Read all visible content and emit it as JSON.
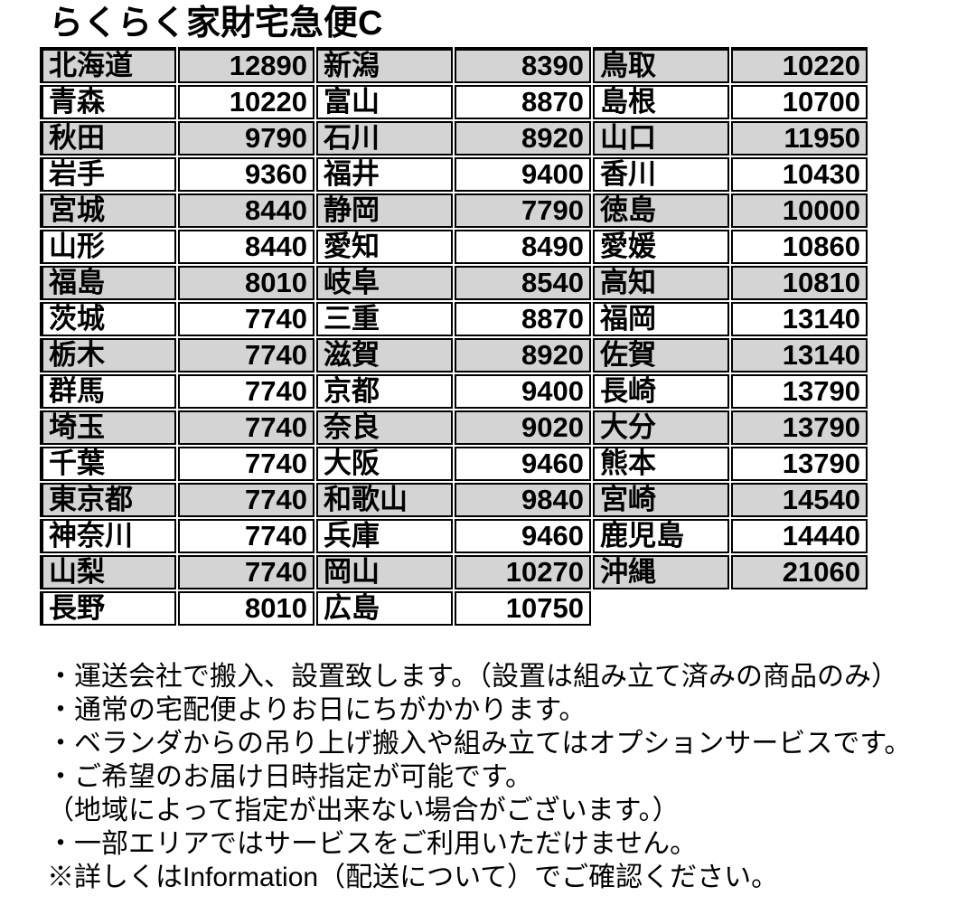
{
  "title": "らくらく家財宅急便C",
  "table": {
    "row_gray": "#d4d4d4",
    "row_white": "#ffffff",
    "border_color": "#000000",
    "groups": [
      {
        "rows": [
          {
            "prefecture": "北海道",
            "fee": "12890"
          },
          {
            "prefecture": "青森",
            "fee": "10220"
          },
          {
            "prefecture": "秋田",
            "fee": "9790"
          },
          {
            "prefecture": "岩手",
            "fee": "9360"
          },
          {
            "prefecture": "宮城",
            "fee": "8440"
          },
          {
            "prefecture": "山形",
            "fee": "8440"
          },
          {
            "prefecture": "福島",
            "fee": "8010"
          },
          {
            "prefecture": "茨城",
            "fee": "7740"
          },
          {
            "prefecture": "栃木",
            "fee": "7740"
          },
          {
            "prefecture": "群馬",
            "fee": "7740"
          },
          {
            "prefecture": "埼玉",
            "fee": "7740"
          },
          {
            "prefecture": "千葉",
            "fee": "7740"
          },
          {
            "prefecture": "東京都",
            "fee": "7740"
          },
          {
            "prefecture": "神奈川",
            "fee": "7740"
          },
          {
            "prefecture": "山梨",
            "fee": "7740"
          },
          {
            "prefecture": "長野",
            "fee": "8010"
          }
        ]
      },
      {
        "rows": [
          {
            "prefecture": "新潟",
            "fee": "8390"
          },
          {
            "prefecture": "富山",
            "fee": "8870"
          },
          {
            "prefecture": "石川",
            "fee": "8920"
          },
          {
            "prefecture": "福井",
            "fee": "9400"
          },
          {
            "prefecture": "静岡",
            "fee": "7790"
          },
          {
            "prefecture": "愛知",
            "fee": "8490"
          },
          {
            "prefecture": "岐阜",
            "fee": "8540"
          },
          {
            "prefecture": "三重",
            "fee": "8870"
          },
          {
            "prefecture": "滋賀",
            "fee": "8920"
          },
          {
            "prefecture": "京都",
            "fee": "9400"
          },
          {
            "prefecture": "奈良",
            "fee": "9020"
          },
          {
            "prefecture": "大阪",
            "fee": "9460"
          },
          {
            "prefecture": "和歌山",
            "fee": "9840"
          },
          {
            "prefecture": "兵庫",
            "fee": "9460"
          },
          {
            "prefecture": "岡山",
            "fee": "10270"
          },
          {
            "prefecture": "広島",
            "fee": "10750"
          }
        ]
      },
      {
        "rows": [
          {
            "prefecture": "鳥取",
            "fee": "10220"
          },
          {
            "prefecture": "島根",
            "fee": "10700"
          },
          {
            "prefecture": "山口",
            "fee": "11950"
          },
          {
            "prefecture": "香川",
            "fee": "10430"
          },
          {
            "prefecture": "徳島",
            "fee": "10000"
          },
          {
            "prefecture": "愛媛",
            "fee": "10860"
          },
          {
            "prefecture": "高知",
            "fee": "10810"
          },
          {
            "prefecture": "福岡",
            "fee": "13140"
          },
          {
            "prefecture": "佐賀",
            "fee": "13140"
          },
          {
            "prefecture": "長崎",
            "fee": "13790"
          },
          {
            "prefecture": "大分",
            "fee": "13790"
          },
          {
            "prefecture": "熊本",
            "fee": "13790"
          },
          {
            "prefecture": "宮崎",
            "fee": "14540"
          },
          {
            "prefecture": "鹿児島",
            "fee": "14440"
          },
          {
            "prefecture": "沖縄",
            "fee": "21060"
          }
        ]
      }
    ]
  },
  "notes": [
    "・運送会社で搬入、設置致します。（設置は組み立て済みの商品のみ）",
    "・通常の宅配便よりお日にちがかかります。",
    "・ベランダからの吊り上げ搬入や組み立てはオプションサービスです。",
    "・ご希望のお届け日時指定が可能です。",
    "（地域によって指定が出来ない場合がございます。）",
    "・一部エリアではサービスをご利用いただけません。",
    "※詳しくはInformation（配送について）でご確認ください。"
  ]
}
